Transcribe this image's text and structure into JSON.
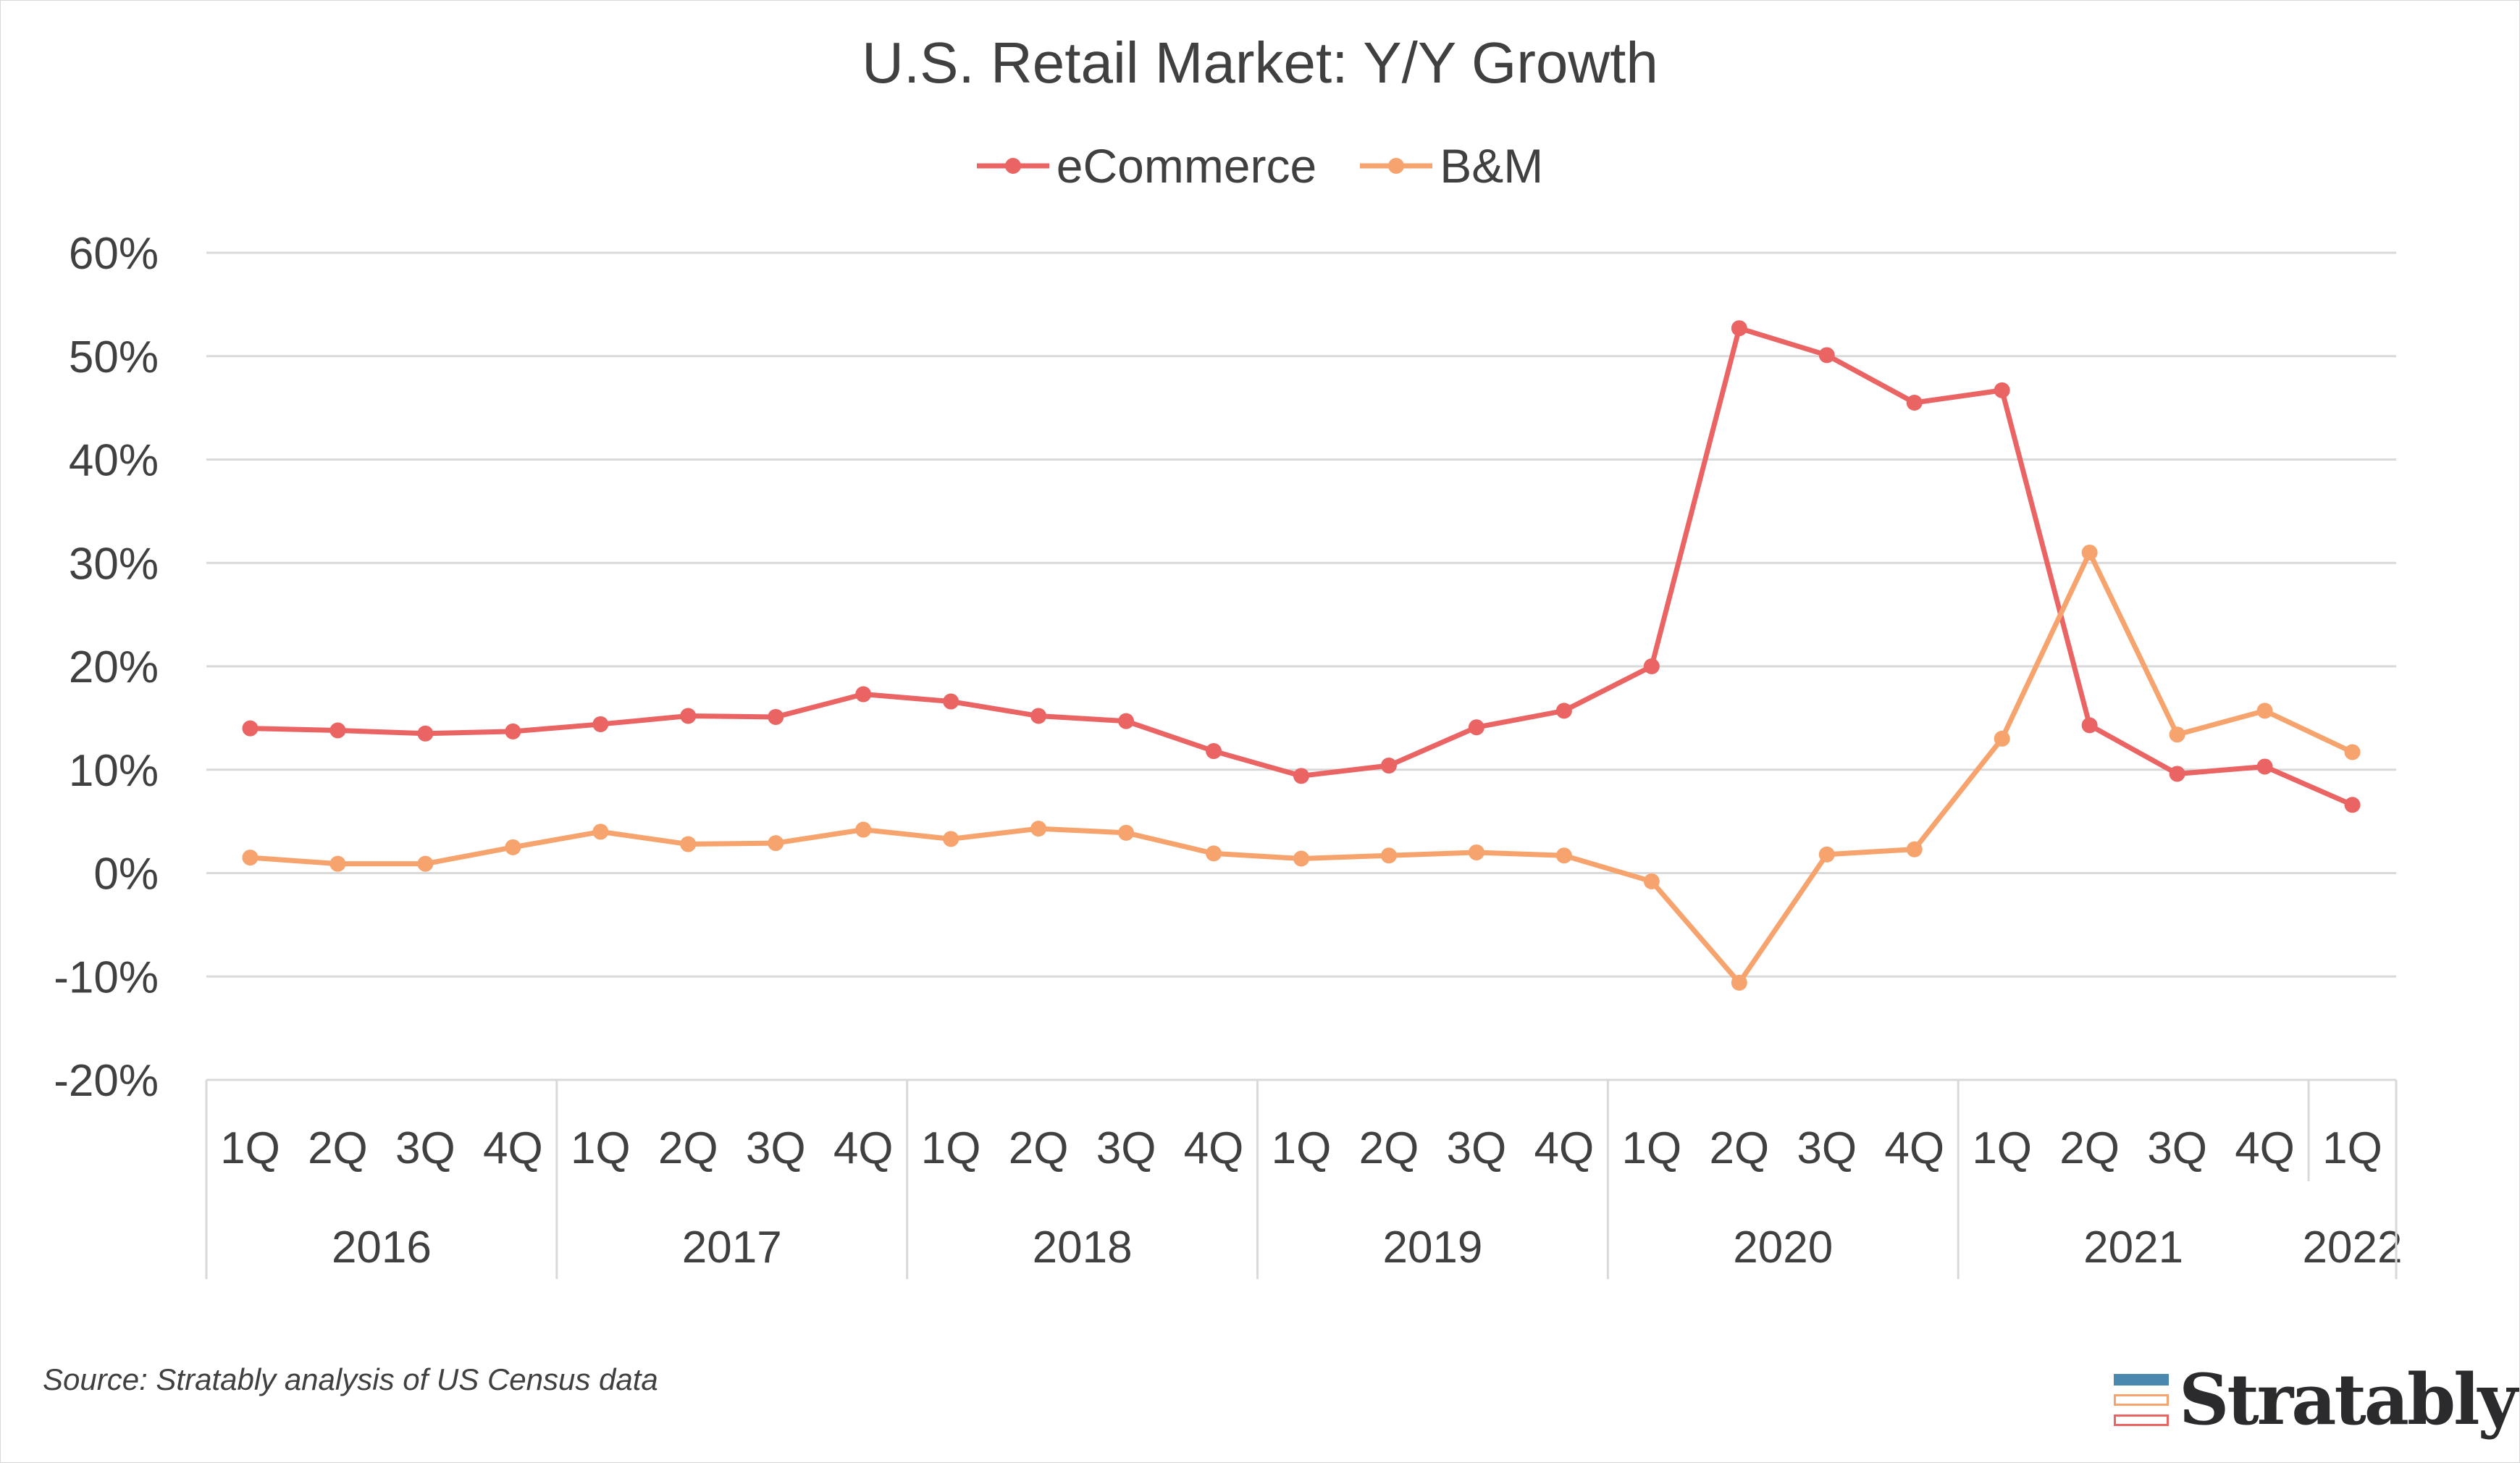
{
  "chart_data": {
    "type": "line",
    "title": "U.S. Retail Market: Y/Y Growth",
    "xlabel": "",
    "ylabel": "",
    "ylim": [
      -20,
      60
    ],
    "y_ticks": [
      "60%",
      "50%",
      "40%",
      "30%",
      "20%",
      "10%",
      "0%",
      "-10%",
      "-20%"
    ],
    "y_tick_values": [
      60,
      50,
      40,
      30,
      20,
      10,
      0,
      -10,
      -20
    ],
    "grid": true,
    "legend": "top-center",
    "categories": [
      "1Q",
      "2Q",
      "3Q",
      "4Q",
      "1Q",
      "2Q",
      "3Q",
      "4Q",
      "1Q",
      "2Q",
      "3Q",
      "4Q",
      "1Q",
      "2Q",
      "3Q",
      "4Q",
      "1Q",
      "2Q",
      "3Q",
      "4Q",
      "1Q",
      "2Q",
      "3Q",
      "4Q",
      "1Q"
    ],
    "years": [
      {
        "label": "2016",
        "count": 4
      },
      {
        "label": "2017",
        "count": 4
      },
      {
        "label": "2018",
        "count": 4
      },
      {
        "label": "2019",
        "count": 4
      },
      {
        "label": "2020",
        "count": 4
      },
      {
        "label": "2021",
        "count": 4
      },
      {
        "label": "2022",
        "count": 1
      }
    ],
    "series": [
      {
        "name": "eCommerce",
        "color": "#ea6464",
        "values": [
          14.0,
          13.8,
          13.5,
          13.7,
          14.4,
          15.2,
          15.1,
          17.3,
          16.6,
          15.2,
          14.7,
          11.8,
          9.4,
          10.4,
          14.1,
          15.7,
          20.0,
          52.7,
          50.1,
          45.5,
          46.7,
          14.3,
          9.6,
          10.3,
          6.6
        ]
      },
      {
        "name": "B&M",
        "color": "#f6a36d",
        "values": [
          1.5,
          0.9,
          0.9,
          2.5,
          4.0,
          2.8,
          2.9,
          4.2,
          3.3,
          4.3,
          3.9,
          1.9,
          1.4,
          1.7,
          2.0,
          1.7,
          -0.8,
          -10.6,
          1.8,
          2.3,
          13.0,
          31.0,
          13.4,
          15.7,
          11.7
        ]
      }
    ]
  },
  "source": "Source: Stratably analysis of US Census data",
  "logo": {
    "text": "Stratably",
    "colors": [
      "#4a88b0",
      "#f6a36d",
      "#ea6464"
    ]
  }
}
